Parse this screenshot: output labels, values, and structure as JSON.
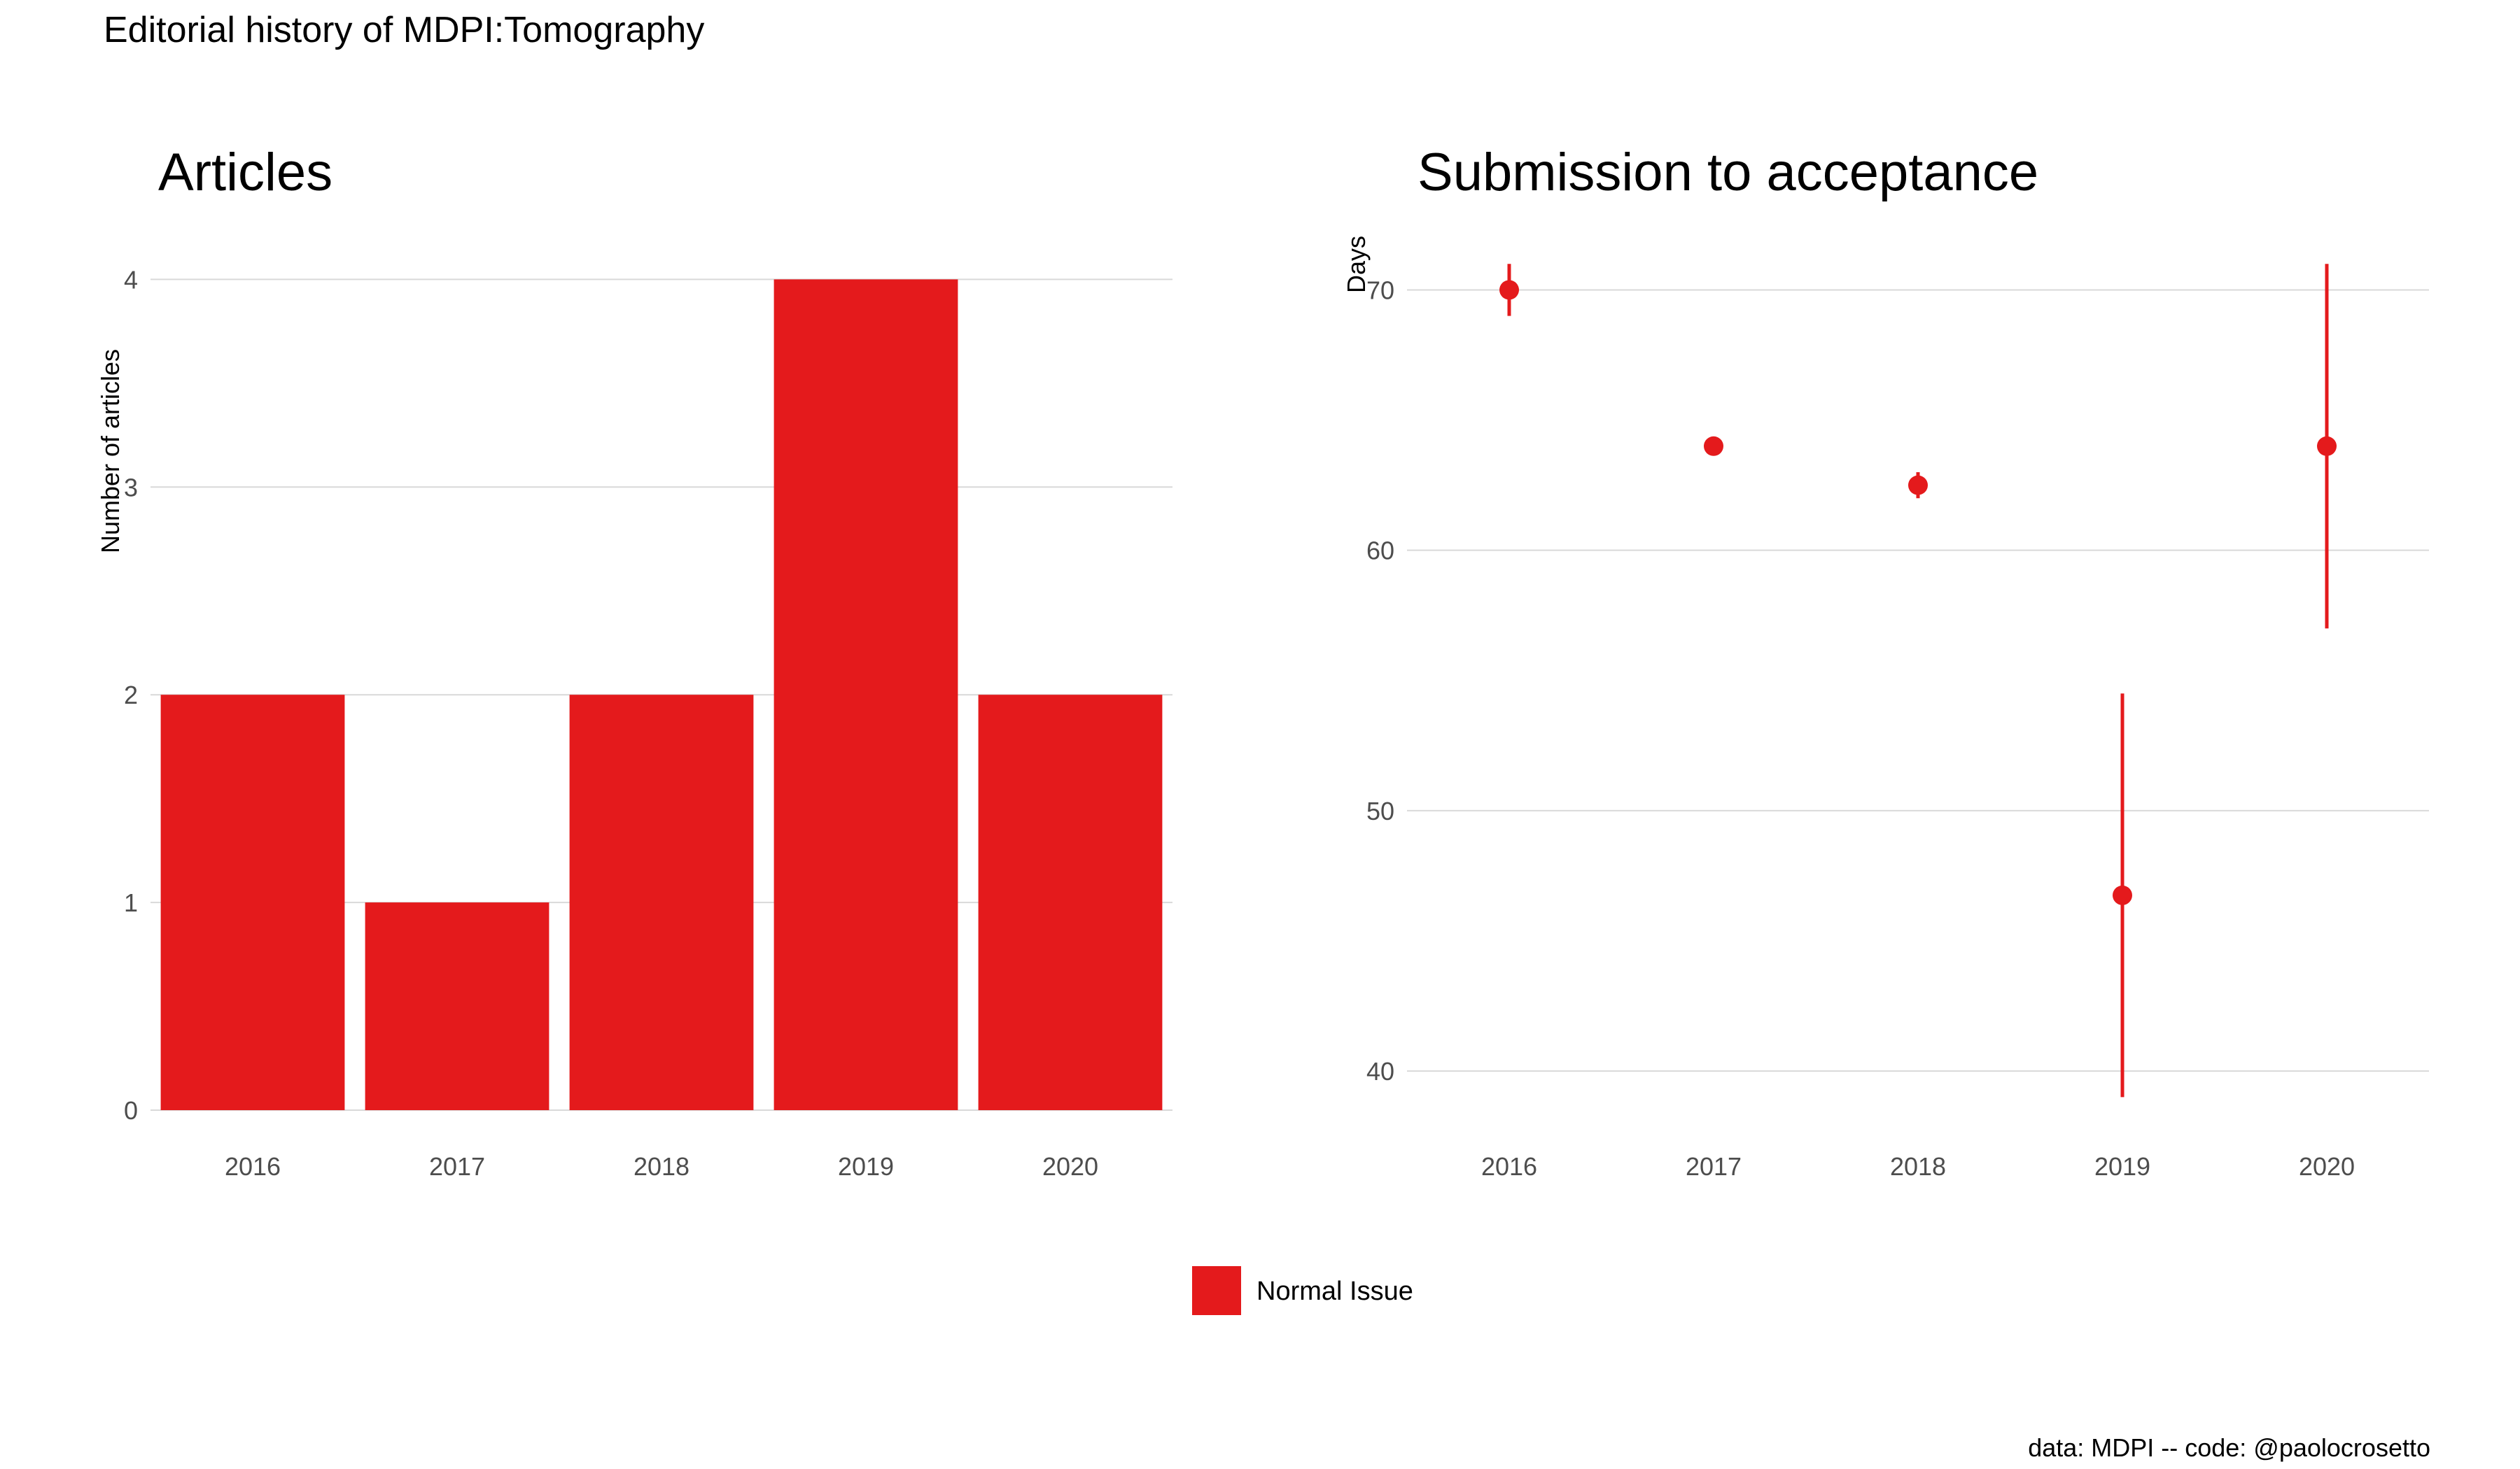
{
  "title": "Editorial history of MDPI:Tomography",
  "caption": "data: MDPI -- code: @paolocrosetto",
  "colors": {
    "normal_issue": "#e41a1c",
    "grid": "#d9d9d9",
    "tick_text": "#4d4d4d",
    "text": "#000000"
  },
  "legend": {
    "position": "bottom",
    "entries": [
      "Normal Issue"
    ]
  },
  "chart_data": [
    {
      "type": "bar",
      "title": "Articles",
      "xlabel": "",
      "ylabel": "Number of articles",
      "categories": [
        "2016",
        "2017",
        "2018",
        "2019",
        "2020"
      ],
      "series": [
        {
          "name": "Normal Issue",
          "values": [
            2,
            1,
            2,
            4,
            2
          ]
        }
      ],
      "ylim": [
        0,
        4.2
      ],
      "yticks": [
        0,
        1,
        2,
        3,
        4
      ],
      "grid": true
    },
    {
      "type": "scatter",
      "title": "Submission to acceptance",
      "xlabel": "",
      "ylabel": "Days",
      "categories": [
        "2016",
        "2017",
        "2018",
        "2019",
        "2020"
      ],
      "series": [
        {
          "name": "Normal Issue",
          "values": [
            70,
            64,
            62.5,
            46.75,
            64
          ],
          "lower": [
            69,
            64,
            62,
            39,
            57
          ],
          "upper": [
            71,
            64,
            63,
            54.5,
            71
          ]
        }
      ],
      "ylim": [
        38.5,
        72
      ],
      "yticks": [
        40,
        50,
        60,
        70
      ],
      "grid": true
    }
  ]
}
